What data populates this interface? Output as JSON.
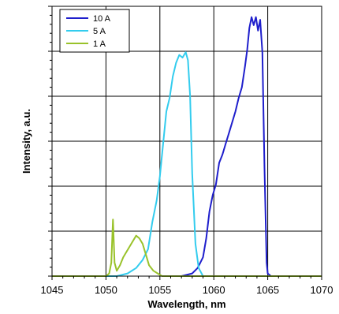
{
  "chart_data": {
    "type": "line",
    "xlabel": "Wavelength, nm",
    "ylabel": "Intensity, a.u.",
    "xlim": [
      1045,
      1070
    ],
    "ylim": [
      0,
      1
    ],
    "x_ticks": [
      1045,
      1050,
      1055,
      1060,
      1065,
      1070
    ],
    "x_tick_labels": [
      "1045",
      "1050",
      "1055",
      "1060",
      "1065",
      "1070"
    ],
    "y_gridlines": 6,
    "y_tick_labels_shown": false,
    "grid": true,
    "legend_position": "top-left",
    "series": [
      {
        "name": "10 A",
        "color": "#1f1fcc",
        "x": [
          1057.0,
          1058.0,
          1058.5,
          1059.0,
          1059.3,
          1059.6,
          1059.9,
          1060.2,
          1060.5,
          1060.8,
          1061.1,
          1061.4,
          1061.7,
          1062.0,
          1062.3,
          1062.6,
          1062.9,
          1063.1,
          1063.3,
          1063.5,
          1063.7,
          1063.9,
          1064.1,
          1064.3,
          1064.5,
          1064.7,
          1064.9,
          1065.0,
          1065.3,
          1066.0,
          1070.0
        ],
        "y": [
          0.0,
          0.01,
          0.03,
          0.07,
          0.14,
          0.24,
          0.3,
          0.34,
          0.42,
          0.45,
          0.49,
          0.53,
          0.57,
          0.61,
          0.66,
          0.7,
          0.78,
          0.84,
          0.92,
          0.96,
          0.93,
          0.96,
          0.91,
          0.95,
          0.83,
          0.4,
          0.05,
          0.01,
          0.0,
          0.0,
          0.0
        ]
      },
      {
        "name": "5 A",
        "color": "#33ccee",
        "x": [
          1045.0,
          1051.0,
          1052.0,
          1052.8,
          1053.4,
          1053.9,
          1054.3,
          1054.7,
          1055.0,
          1055.3,
          1055.6,
          1055.9,
          1056.2,
          1056.5,
          1056.8,
          1057.1,
          1057.4,
          1057.6,
          1057.8,
          1058.0,
          1058.3,
          1058.6,
          1059.0,
          1070.0
        ],
        "y": [
          0.0,
          0.0,
          0.01,
          0.03,
          0.06,
          0.1,
          0.2,
          0.28,
          0.37,
          0.49,
          0.61,
          0.66,
          0.74,
          0.79,
          0.82,
          0.81,
          0.83,
          0.8,
          0.67,
          0.38,
          0.12,
          0.03,
          0.0,
          0.0
        ]
      },
      {
        "name": "1 A",
        "color": "#99c22a",
        "x": [
          1045.0,
          1050.0,
          1050.3,
          1050.5,
          1050.65,
          1050.8,
          1051.0,
          1051.3,
          1051.6,
          1051.9,
          1052.2,
          1052.5,
          1052.8,
          1053.1,
          1053.4,
          1053.7,
          1054.0,
          1054.4,
          1054.8,
          1055.2,
          1070.0
        ],
        "y": [
          0.0,
          0.0,
          0.01,
          0.05,
          0.21,
          0.05,
          0.02,
          0.04,
          0.07,
          0.09,
          0.11,
          0.13,
          0.15,
          0.14,
          0.12,
          0.08,
          0.04,
          0.02,
          0.01,
          0.0,
          0.0
        ]
      }
    ]
  }
}
